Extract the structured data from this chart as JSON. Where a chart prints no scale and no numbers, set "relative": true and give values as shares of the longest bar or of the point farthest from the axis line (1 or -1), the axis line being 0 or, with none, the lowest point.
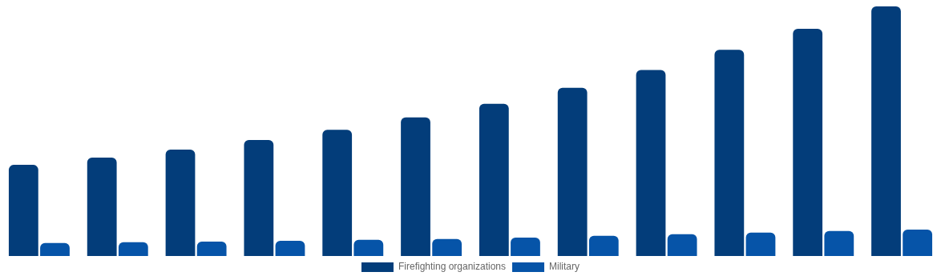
{
  "chart_data": {
    "type": "bar",
    "relative": true,
    "legend": "bottom",
    "categories": [
      null,
      null,
      null,
      null,
      null,
      null,
      null,
      null,
      null,
      null,
      null,
      null
    ],
    "series": [
      {
        "name": "Firefighting organizations",
        "color": "#033d7a",
        "values": [
          0.365,
          0.394,
          0.426,
          0.465,
          0.506,
          0.555,
          0.61,
          0.674,
          0.745,
          0.826,
          0.91,
          1
        ]
      },
      {
        "name": "Military",
        "color": "#0654a8",
        "values": [
          0.052,
          0.055,
          0.058,
          0.061,
          0.065,
          0.068,
          0.074,
          0.081,
          0.087,
          0.094,
          0.1,
          0.106
        ]
      }
    ]
  }
}
